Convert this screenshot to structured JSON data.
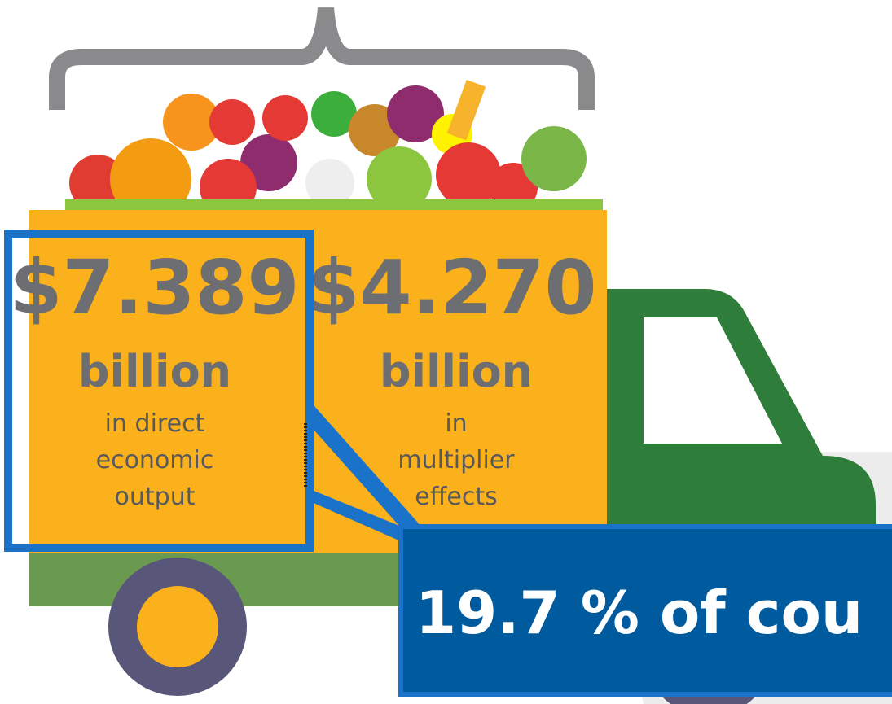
{
  "left_panel": {
    "amount": "$7.389",
    "unit": "billion",
    "description": [
      "in direct",
      "economic",
      "output"
    ]
  },
  "right_panel": {
    "amount": "$4.270",
    "unit": "billion",
    "description": [
      "in",
      "multiplier",
      "effects"
    ]
  },
  "callout": {
    "text": "19.7 % of cou"
  }
}
